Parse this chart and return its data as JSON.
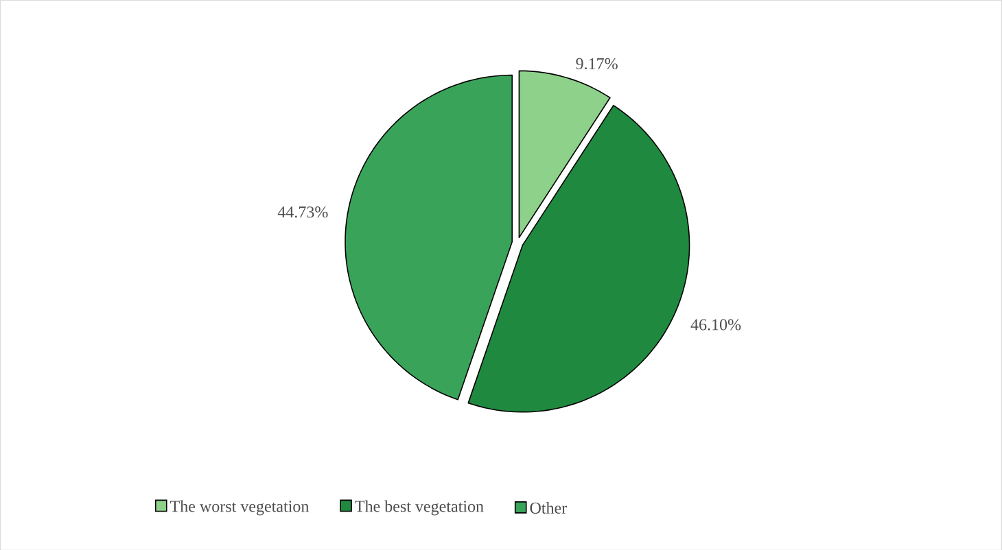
{
  "chart_data": {
    "type": "pie",
    "categories": [
      "The worst vegetation",
      "The best vegetation",
      "Other"
    ],
    "values": [
      9.17,
      46.1,
      44.73
    ],
    "value_labels": [
      "9.17%",
      "46.10%",
      "44.73%"
    ],
    "colors": [
      "#8dd18a",
      "#1f8a3f",
      "#3aa35a"
    ],
    "legend": "bottom"
  }
}
